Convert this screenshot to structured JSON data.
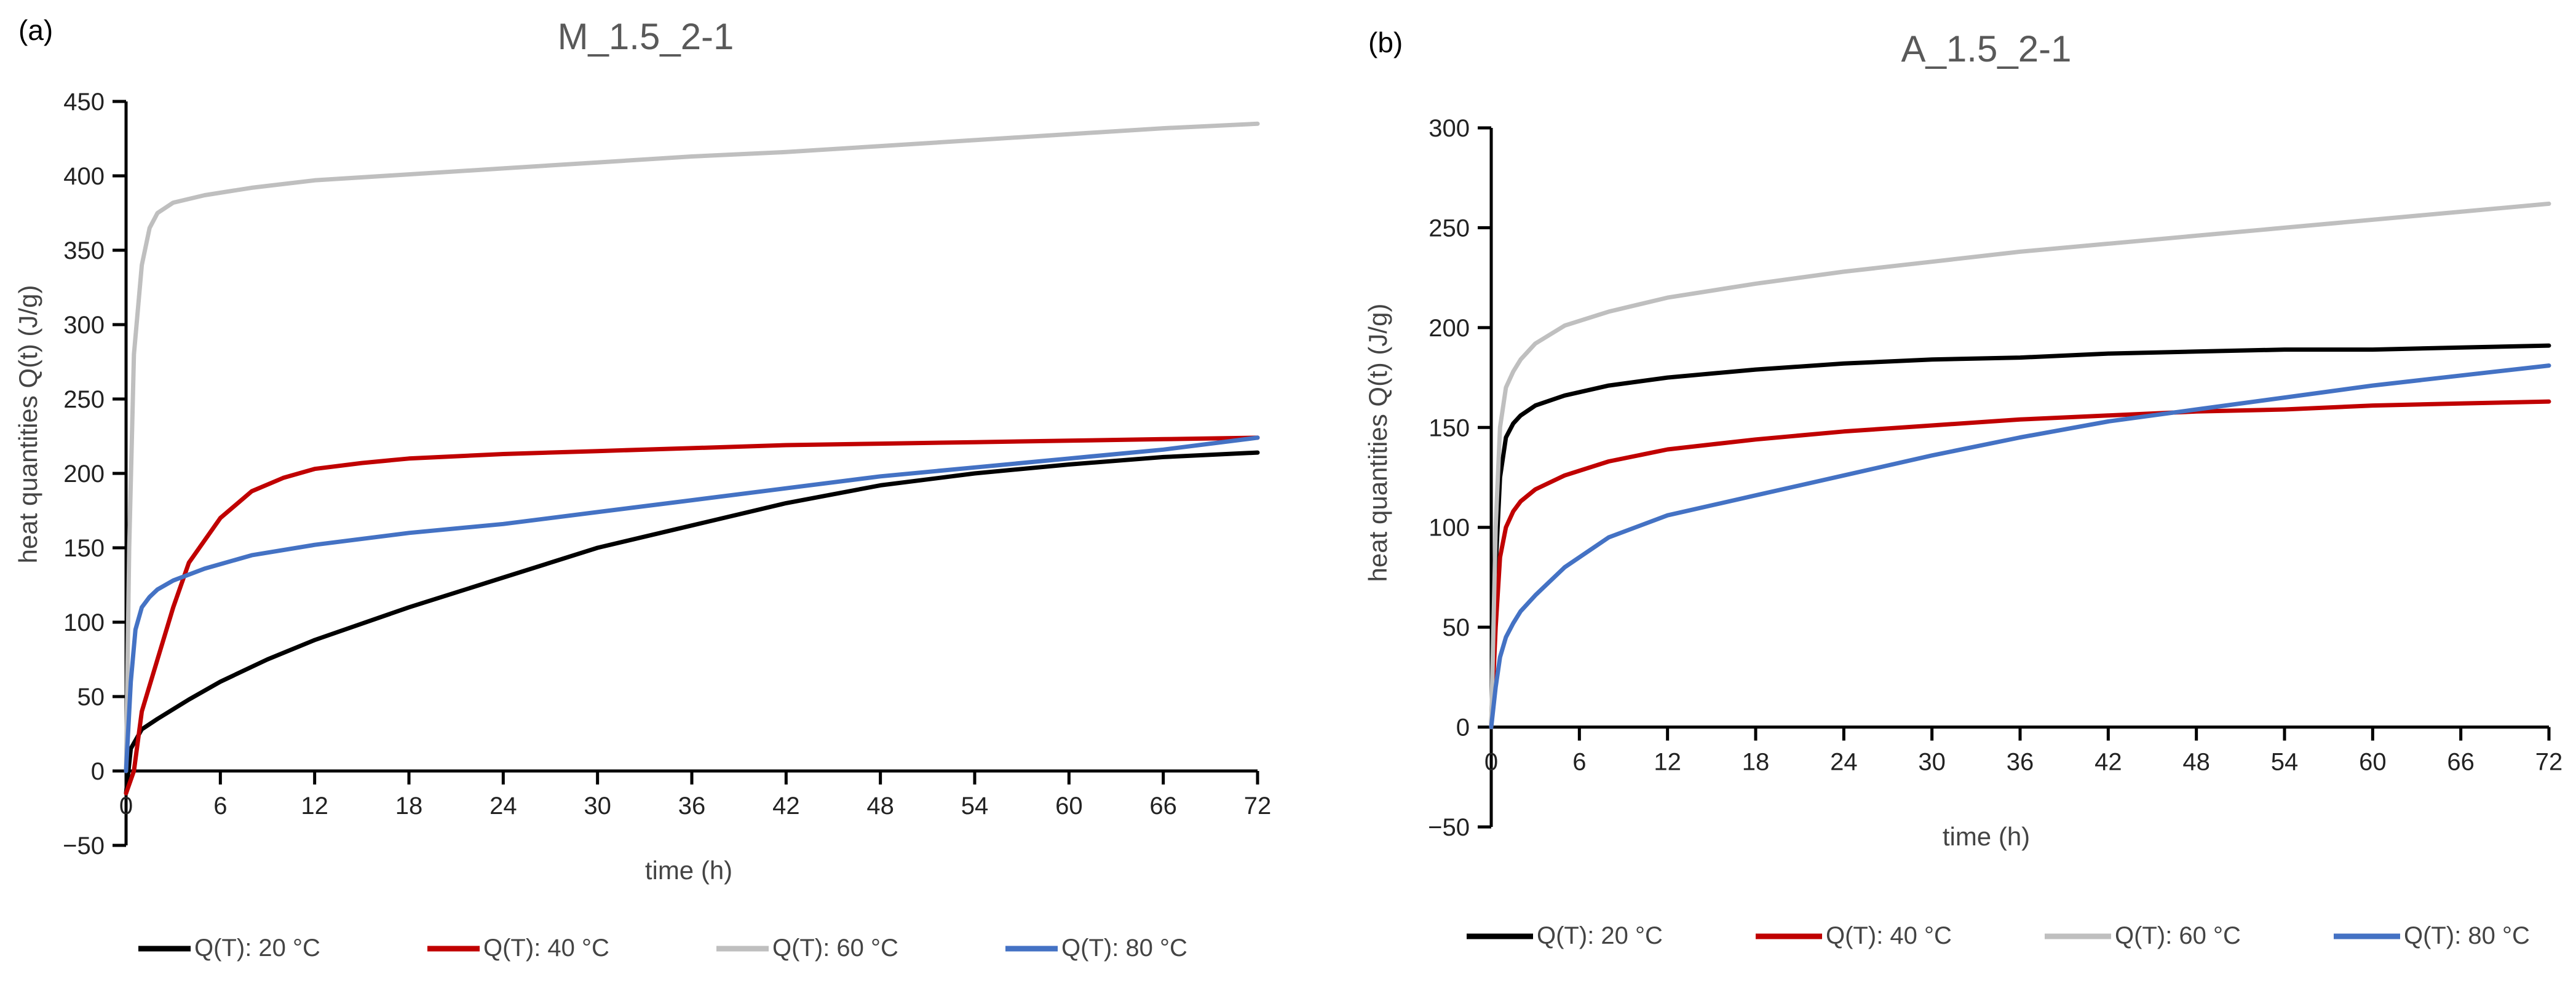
{
  "chart_data": [
    {
      "type": "line",
      "panel_label": "(a)",
      "title": "M_1.5_2-1",
      "xlabel": "time (h)",
      "ylabel": "heat quantities Q(t) (J/g)",
      "xlim": [
        0,
        72
      ],
      "ylim": [
        -50,
        450
      ],
      "xticks": [
        0,
        6,
        12,
        18,
        24,
        30,
        36,
        42,
        48,
        54,
        60,
        66,
        72
      ],
      "yticks": [
        -50,
        0,
        50,
        100,
        150,
        200,
        250,
        300,
        350,
        400,
        450
      ],
      "legend_position": "bottom",
      "series": [
        {
          "name": "Q(T): 20 °C",
          "color": "#000000",
          "x": [
            0,
            0.3,
            1,
            2,
            4,
            6,
            9,
            12,
            18,
            24,
            30,
            36,
            42,
            48,
            54,
            60,
            66,
            72
          ],
          "y": [
            -15,
            15,
            28,
            35,
            48,
            60,
            75,
            88,
            110,
            130,
            150,
            165,
            180,
            192,
            200,
            206,
            211,
            214
          ]
        },
        {
          "name": "Q(T): 40 °C",
          "color": "#C00000",
          "x": [
            0,
            0.5,
            1,
            2,
            3,
            4,
            6,
            8,
            10,
            12,
            15,
            18,
            24,
            30,
            36,
            42,
            48,
            54,
            60,
            66,
            72
          ],
          "y": [
            -15,
            0,
            40,
            75,
            110,
            140,
            170,
            188,
            197,
            203,
            207,
            210,
            213,
            215,
            217,
            219,
            220,
            221,
            222,
            223,
            224
          ]
        },
        {
          "name": "Q(T): 60 °C",
          "color": "#BFBFBF",
          "x": [
            0,
            0.2,
            0.5,
            1,
            1.5,
            2,
            3,
            5,
            8,
            12,
            18,
            24,
            30,
            36,
            42,
            48,
            54,
            60,
            66,
            72
          ],
          "y": [
            0,
            150,
            280,
            340,
            365,
            375,
            382,
            387,
            392,
            397,
            401,
            405,
            409,
            413,
            416,
            420,
            424,
            428,
            432,
            435
          ]
        },
        {
          "name": "Q(T): 80 °C",
          "color": "#4472C4",
          "x": [
            0,
            0.3,
            0.6,
            1,
            1.5,
            2,
            3,
            5,
            8,
            12,
            18,
            24,
            30,
            36,
            42,
            48,
            54,
            60,
            66,
            72
          ],
          "y": [
            0,
            60,
            95,
            110,
            117,
            122,
            128,
            136,
            145,
            152,
            160,
            166,
            174,
            182,
            190,
            198,
            204,
            210,
            216,
            224
          ]
        }
      ]
    },
    {
      "type": "line",
      "panel_label": "(b)",
      "title": "A_1.5_2-1",
      "xlabel": "time (h)",
      "ylabel": "heat quantities Q(t) (J/g)",
      "xlim": [
        0,
        72
      ],
      "ylim": [
        -50,
        300
      ],
      "xticks": [
        0,
        6,
        12,
        18,
        24,
        30,
        36,
        42,
        48,
        54,
        60,
        66,
        72
      ],
      "yticks": [
        -50,
        0,
        50,
        100,
        150,
        200,
        250,
        300
      ],
      "legend_position": "bottom",
      "series": [
        {
          "name": "Q(T): 20 °C",
          "color": "#000000",
          "x": [
            0,
            0.3,
            0.6,
            1,
            1.5,
            2,
            3,
            5,
            8,
            12,
            18,
            24,
            30,
            36,
            42,
            48,
            54,
            60,
            66,
            72
          ],
          "y": [
            0,
            80,
            125,
            145,
            152,
            156,
            161,
            166,
            171,
            175,
            179,
            182,
            184,
            185,
            187,
            188,
            189,
            189,
            190,
            191
          ]
        },
        {
          "name": "Q(T): 40 °C",
          "color": "#C00000",
          "x": [
            0,
            0.3,
            0.6,
            1,
            1.5,
            2,
            3,
            5,
            8,
            12,
            18,
            24,
            30,
            36,
            42,
            48,
            54,
            60,
            66,
            72
          ],
          "y": [
            0,
            50,
            85,
            100,
            108,
            113,
            119,
            126,
            133,
            139,
            144,
            148,
            151,
            154,
            156,
            158,
            159,
            161,
            162,
            163
          ]
        },
        {
          "name": "Q(T): 60 °C",
          "color": "#BFBFBF",
          "x": [
            0,
            0.3,
            0.6,
            1,
            1.5,
            2,
            3,
            5,
            8,
            12,
            18,
            24,
            30,
            36,
            42,
            48,
            54,
            60,
            66,
            72
          ],
          "y": [
            0,
            100,
            150,
            170,
            178,
            184,
            192,
            201,
            208,
            215,
            222,
            228,
            233,
            238,
            242,
            246,
            250,
            254,
            258,
            262
          ]
        },
        {
          "name": "Q(T): 80 °C",
          "color": "#4472C4",
          "x": [
            0,
            0.3,
            0.6,
            1,
            1.5,
            2,
            3,
            5,
            8,
            12,
            18,
            24,
            30,
            36,
            42,
            48,
            54,
            60,
            66,
            72
          ],
          "y": [
            0,
            20,
            35,
            45,
            52,
            58,
            66,
            80,
            95,
            106,
            116,
            126,
            136,
            145,
            153,
            159,
            165,
            171,
            176,
            181
          ]
        }
      ]
    }
  ]
}
